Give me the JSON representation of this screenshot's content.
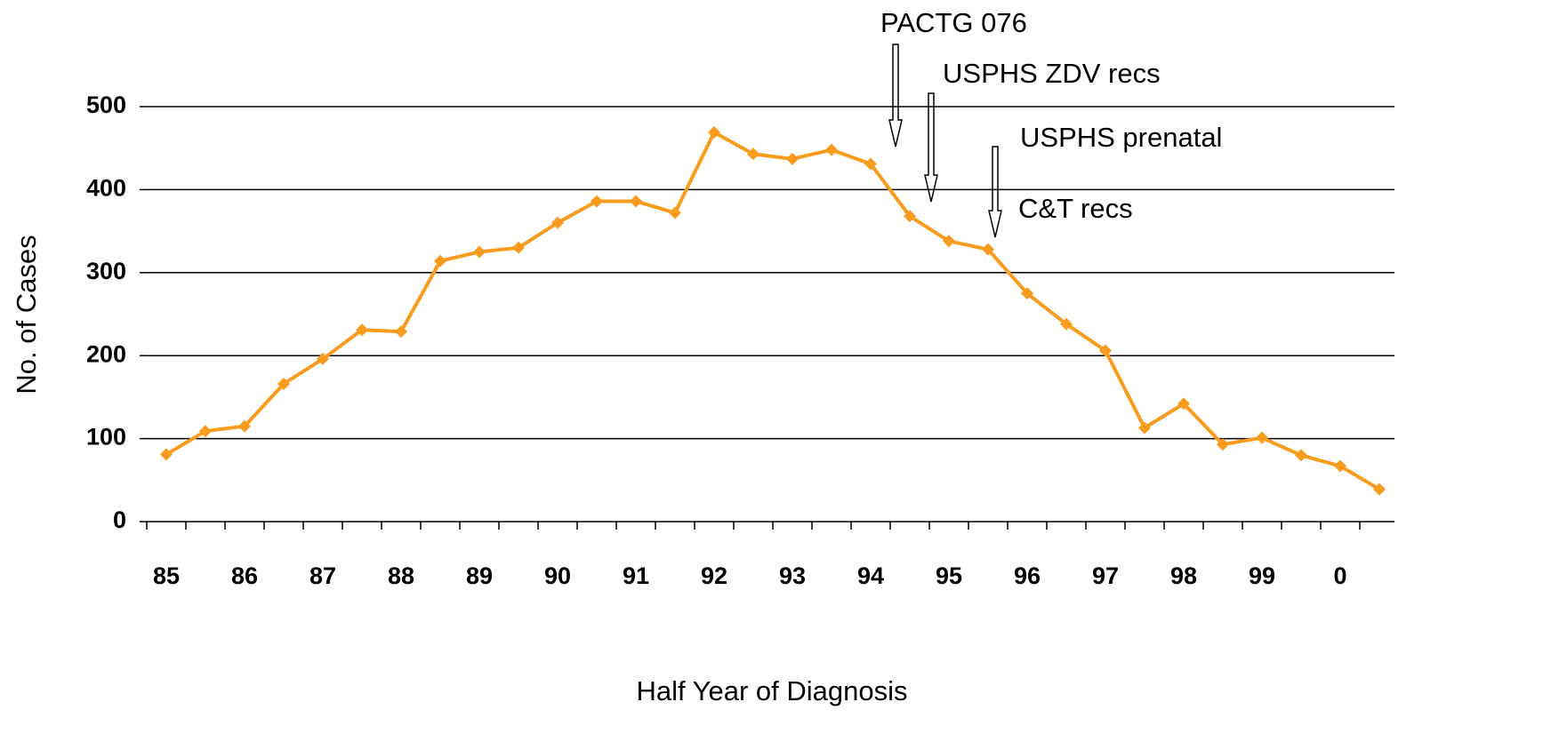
{
  "chart_data": {
    "type": "line",
    "x_label": "Half Year of Diagnosis",
    "y_label": "No. of Cases",
    "annotations": [
      "PACTG 076",
      "USPHS ZDV recs",
      "USPHS prenatal",
      "C&T recs"
    ],
    "categories": [
      "85",
      null,
      "86",
      null,
      "87",
      null,
      "88",
      null,
      "89",
      null,
      "90",
      null,
      "91",
      null,
      "92",
      null,
      "93",
      null,
      "94",
      null,
      "95",
      null,
      "96",
      null,
      "97",
      null,
      "98",
      null,
      "99",
      null,
      "0",
      null
    ],
    "series": [
      {
        "name": "Cases",
        "color": "#f99b1c",
        "values": [
          81,
          109,
          115,
          166,
          196,
          231,
          229,
          314,
          325,
          330,
          360,
          386,
          386,
          372,
          469,
          443,
          437,
          448,
          431,
          368,
          338,
          328,
          275,
          238,
          206,
          113,
          142,
          93,
          101,
          80,
          67,
          39
        ]
      }
    ],
    "ylim": [
      0,
      500
    ],
    "yticks": [
      0,
      100,
      200,
      300,
      400,
      500
    ],
    "grid": true
  }
}
